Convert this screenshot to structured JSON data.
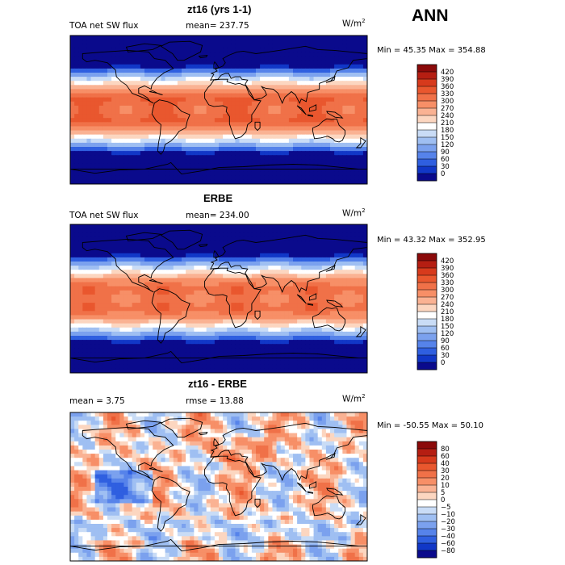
{
  "header": {
    "season": "ANN"
  },
  "chart_data": [
    {
      "type": "heatmap",
      "title": "zt16 (yrs 1-1)",
      "variable_label": "TOA net SW flux",
      "stat_text": "mean=  237.75",
      "units": {
        "base": "W/m",
        "exp": "2"
      },
      "min_max_text": "Min =  45.35 Max = 354.88",
      "colorbar_levels": [
        "420",
        "390",
        "360",
        "330",
        "300",
        "270",
        "240",
        "210",
        "180",
        "150",
        "120",
        "90",
        "60",
        "30",
        "0"
      ],
      "colorbar_colors": [
        "#8b0a0a",
        "#b51e12",
        "#d73a1c",
        "#e9572e",
        "#f07148",
        "#f78f67",
        "#fab293",
        "#fcd6c0",
        "#ffffff",
        "#c9dcf6",
        "#9fbff2",
        "#7ba1ee",
        "#5683ea",
        "#2f5fe0",
        "#1137c7",
        "#0a0a8c"
      ],
      "map_mode": "sw"
    },
    {
      "type": "heatmap",
      "title": "ERBE",
      "variable_label": "TOA net SW flux",
      "stat_text": "mean=  234.00",
      "units": {
        "base": "W/m",
        "exp": "2"
      },
      "min_max_text": "Min =  43.32 Max = 352.95",
      "colorbar_levels": [
        "420",
        "390",
        "360",
        "330",
        "300",
        "270",
        "240",
        "210",
        "180",
        "150",
        "120",
        "90",
        "60",
        "30",
        "0"
      ],
      "colorbar_colors": [
        "#8b0a0a",
        "#b51e12",
        "#d73a1c",
        "#e9572e",
        "#f07148",
        "#f78f67",
        "#fab293",
        "#fcd6c0",
        "#ffffff",
        "#c9dcf6",
        "#9fbff2",
        "#7ba1ee",
        "#5683ea",
        "#2f5fe0",
        "#1137c7",
        "#0a0a8c"
      ],
      "map_mode": "sw2"
    },
    {
      "type": "heatmap",
      "title": "zt16 - ERBE",
      "variable_label": "mean =   3.75",
      "stat_text": "rmse =  13.88",
      "units": {
        "base": "W/m",
        "exp": "2"
      },
      "min_max_text": "Min = -50.55 Max =  50.10",
      "colorbar_levels": [
        "80",
        "60",
        "40",
        "30",
        "20",
        "10",
        "5",
        "0",
        "−5",
        "−10",
        "−20",
        "−30",
        "−40",
        "−60",
        "−80"
      ],
      "colorbar_colors": [
        "#8b0a0a",
        "#b51e12",
        "#d73a1c",
        "#e9572e",
        "#f07148",
        "#f78f67",
        "#fab293",
        "#fcd6c0",
        "#ffffff",
        "#c9dcf6",
        "#9fbff2",
        "#7ba1ee",
        "#5683ea",
        "#2f5fe0",
        "#1137c7",
        "#0a0a8c"
      ],
      "map_mode": "diff"
    }
  ]
}
